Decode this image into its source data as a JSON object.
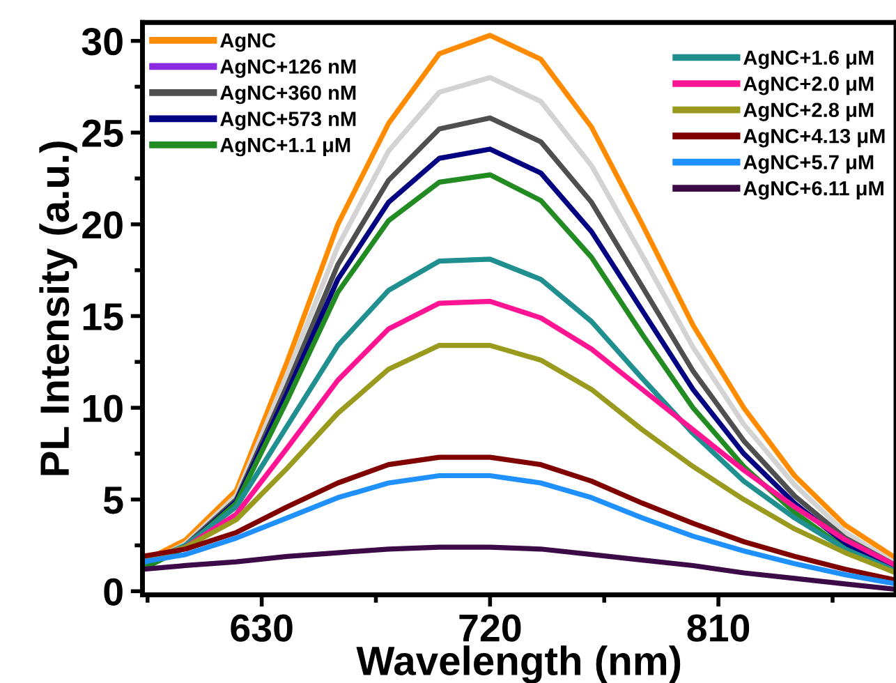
{
  "chart_data": {
    "type": "line",
    "xlabel": "Wavelength (nm)",
    "ylabel": "PL Intensity (a.u.)",
    "x": [
      583,
      600,
      620,
      640,
      660,
      680,
      700,
      720,
      740,
      760,
      780,
      800,
      820,
      840,
      860,
      880
    ],
    "xlim": [
      583,
      880
    ],
    "xticks": [
      630,
      720,
      810
    ],
    "ylim": [
      -0.2,
      31
    ],
    "yticks": [
      0,
      5,
      10,
      15,
      20,
      25,
      30
    ],
    "grid": false,
    "legend": "top",
    "marker": "none",
    "line_style": "solid",
    "series": [
      {
        "name": "AgNC",
        "color": "#ff8c00",
        "values": [
          1.6,
          2.8,
          5.5,
          12.5,
          20.0,
          25.5,
          29.3,
          30.3,
          29.0,
          25.3,
          20.0,
          14.5,
          10.0,
          6.3,
          3.6,
          1.8
        ]
      },
      {
        "name": "AgNC+126 nM",
        "color": "#8a2be2",
        "values": [
          null,
          null,
          null,
          null,
          null,
          null,
          null,
          null,
          null,
          null,
          null,
          null,
          null,
          null,
          null,
          null
        ]
      },
      {
        "color": "#d3d3d3",
        "values": [
          1.4,
          2.6,
          5.2,
          11.8,
          18.8,
          24.0,
          27.2,
          28.0,
          26.7,
          23.2,
          18.3,
          13.3,
          9.1,
          5.8,
          3.2,
          1.5
        ]
      },
      {
        "name": "AgNC+360 nM",
        "color": "#4f4f4f",
        "values": [
          1.3,
          2.5,
          5.0,
          11.2,
          17.8,
          22.4,
          25.2,
          25.8,
          24.5,
          21.2,
          16.6,
          12.0,
          8.2,
          5.2,
          2.9,
          1.4
        ]
      },
      {
        "name": "AgNC+573 nM",
        "color": "#000080",
        "values": [
          1.3,
          2.4,
          4.9,
          10.8,
          17.0,
          21.2,
          23.6,
          24.1,
          22.8,
          19.6,
          15.3,
          11.0,
          7.5,
          4.8,
          2.6,
          1.2
        ]
      },
      {
        "name": "AgNC+1.1 μM",
        "color": "#228b22",
        "values": [
          1.2,
          2.4,
          4.8,
          10.4,
          16.3,
          20.2,
          22.3,
          22.7,
          21.3,
          18.2,
          14.0,
          10.0,
          6.8,
          4.3,
          2.3,
          1.0
        ]
      },
      {
        "name": "AgNC+1.6 μM",
        "color": "#1f8f8f",
        "values": [
          1.5,
          2.5,
          4.6,
          9.0,
          13.4,
          16.4,
          18.0,
          18.1,
          17.0,
          14.7,
          11.6,
          8.6,
          6.0,
          4.0,
          2.3,
          1.1
        ]
      },
      {
        "name": "AgNC+2.0 μM",
        "color": "#ff1493",
        "values": [
          null,
          2.4,
          4.2,
          7.8,
          11.5,
          14.3,
          15.7,
          15.8,
          14.9,
          13.2,
          11.0,
          8.8,
          6.6,
          4.6,
          2.8,
          1.4
        ]
      },
      {
        "name": "AgNC+2.8 μM",
        "color": "#9a9a1e",
        "values": [
          1.7,
          2.4,
          3.9,
          6.7,
          9.7,
          12.1,
          13.4,
          13.4,
          12.6,
          11.0,
          8.8,
          6.8,
          5.0,
          3.4,
          2.1,
          1.0
        ]
      },
      {
        "name": "AgNC+4.13 μM",
        "color": "#800000",
        "values": [
          1.9,
          2.3,
          3.2,
          4.6,
          5.9,
          6.9,
          7.3,
          7.3,
          6.9,
          6.0,
          4.8,
          3.7,
          2.7,
          1.9,
          1.2,
          0.6
        ]
      },
      {
        "name": "AgNC+5.7 μM",
        "color": "#1e90ff",
        "values": [
          1.6,
          2.0,
          2.9,
          4.0,
          5.1,
          5.9,
          6.3,
          6.3,
          5.9,
          5.1,
          4.0,
          3.0,
          2.2,
          1.5,
          0.9,
          0.4
        ]
      },
      {
        "name": "AgNC+6.11 μM",
        "color": "#3c0a46",
        "values": [
          1.2,
          1.4,
          1.6,
          1.9,
          2.1,
          2.3,
          2.4,
          2.4,
          2.3,
          2.0,
          1.7,
          1.4,
          1.0,
          0.7,
          0.4,
          0.1
        ]
      }
    ]
  }
}
